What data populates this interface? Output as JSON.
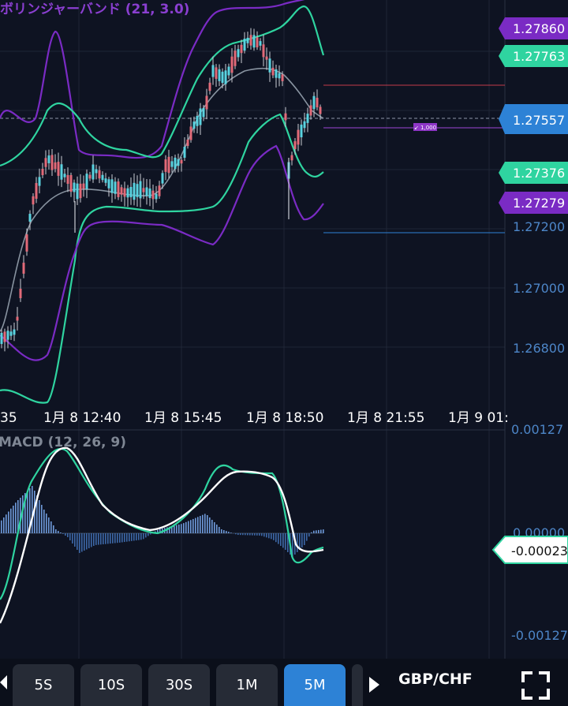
{
  "indicator_labels": {
    "bollinger": "ボリンジャーバンド (21, 3.0)",
    "macd": "MACD (12, 26, 9)"
  },
  "price_axis": {
    "ticks": [
      "1.27200",
      "1.27000",
      "1.26800"
    ],
    "top_tick_partial": "1.27860"
  },
  "price_tags": [
    {
      "label": "1.27860",
      "color": "#7a2bc4"
    },
    {
      "label": "1.27763",
      "color": "#2fd4a0"
    },
    {
      "label": "1.27557",
      "color": "#2d82d6"
    },
    {
      "label": "1.27376",
      "color": "#2fd4a0"
    },
    {
      "label": "1.27279",
      "color": "#7a2bc4"
    }
  ],
  "time_axis": {
    "labels": [
      "35",
      "1月 8 12:40",
      "1月 8 15:45",
      "1月 8 18:50",
      "1月 8 21:55",
      "1月 9 01:"
    ]
  },
  "macd_axis": {
    "top": "0.00127",
    "zero": "0.00000",
    "bottom": "-0.00127",
    "current_tag": "-0.00023"
  },
  "order_tag": {
    "label": "↙ 1,000",
    "color": "#8e36c7"
  },
  "timeframe_tabs": [
    "5S",
    "10S",
    "30S",
    "1M",
    "5M"
  ],
  "active_timeframe": "5M",
  "pair": "GBP/CHF",
  "colors": {
    "background": "#0e1322",
    "purple": "#7a2bc4",
    "green": "#2fd4a0",
    "blue": "#2d82d6",
    "up_candle": "#5ad3e0",
    "down_candle": "#e26a78"
  },
  "icons": [
    "chevron-left-icon",
    "play-icon",
    "fullscreen-icon"
  ]
}
